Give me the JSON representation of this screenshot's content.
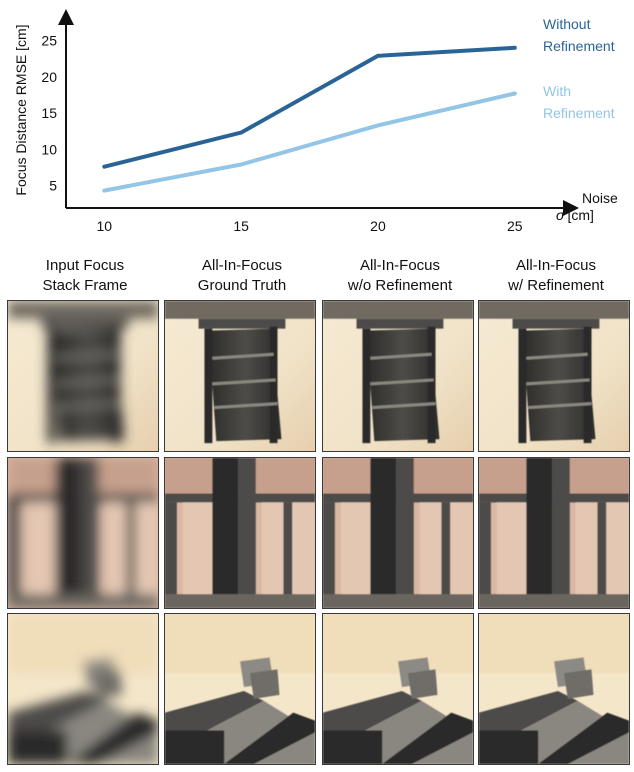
{
  "chart_data": {
    "type": "line",
    "x": [
      10,
      15,
      20,
      25
    ],
    "series": [
      {
        "name": "Without Refinement",
        "values": [
          7.6,
          12.3,
          22.9,
          24.0
        ],
        "color": "#2a6496"
      },
      {
        "name": "With Refinement",
        "values": [
          4.3,
          7.9,
          13.3,
          17.7
        ],
        "color": "#92c5e6"
      }
    ],
    "ylabel": "Focus Distance RMSE [cm]",
    "xlabel": "Noise σ [cm]",
    "xticks": [
      10,
      15,
      20,
      25
    ],
    "yticks": [
      5,
      10,
      15,
      20,
      25
    ],
    "xlim": [
      8.6,
      27.2
    ],
    "ylim": [
      1.9,
      28.8
    ],
    "grid": false,
    "legend": "right, inline labels"
  },
  "labels": {
    "noise_word": "Noise",
    "noise_symbol": "σ",
    "noise_unit": "[cm]",
    "legend_without_1": "Without",
    "legend_without_2": "Refinement",
    "legend_with_1": "With",
    "legend_with_2": "Refinement"
  },
  "columns": [
    {
      "line1": "Input Focus",
      "line2": "Stack Frame"
    },
    {
      "line1": "All-In-Focus",
      "line2": "Ground Truth"
    },
    {
      "line1": "All-In-Focus",
      "line2": "w/o Refinement"
    },
    {
      "line1": "All-In-Focus",
      "line2": "w/ Refinement"
    }
  ],
  "rows": [
    "window",
    "timber-frame",
    "roof-corner"
  ],
  "colors": {
    "wall": "#f1e3c8",
    "wood": "#4e4c48",
    "wood_dark": "#2c2b29"
  }
}
